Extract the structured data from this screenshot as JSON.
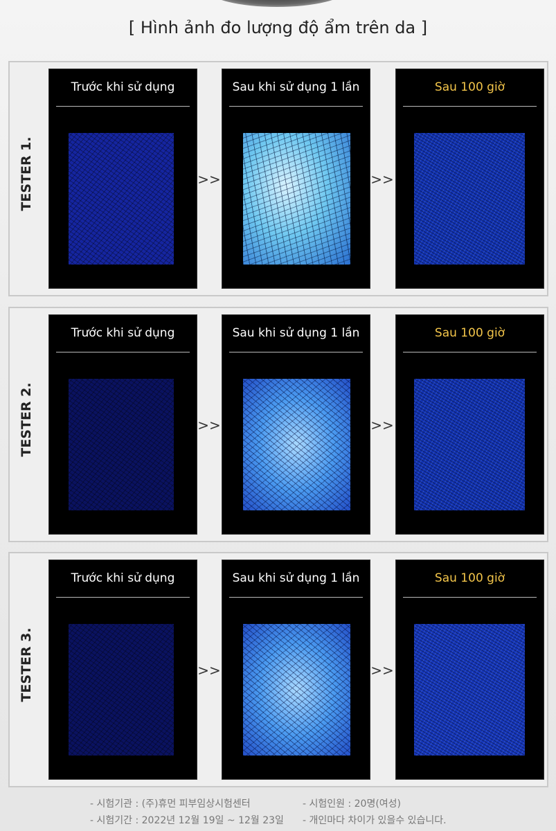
{
  "header": {
    "title": "[ Hình ảnh đo lượng độ ẩm trên da ]"
  },
  "testers": [
    {
      "label": "TESTER 1.",
      "panels": [
        {
          "label": "Trước khi sử dụng"
        },
        {
          "label": "Sau khi sử dụng 1 lần"
        },
        {
          "label": "Sau 100 giờ"
        }
      ],
      "arrows": [
        ">>",
        ">>"
      ]
    },
    {
      "label": "TESTER 2.",
      "panels": [
        {
          "label": "Trước khi sử dụng"
        },
        {
          "label": "Sau khi sử dụng 1 lần"
        },
        {
          "label": "Sau 100 giờ"
        }
      ],
      "arrows": [
        ">>",
        ">>"
      ]
    },
    {
      "label": "TESTER 3.",
      "panels": [
        {
          "label": "Trước khi sử dụng"
        },
        {
          "label": "Sau khi sử dụng 1 lần"
        },
        {
          "label": "Sau 100 giờ"
        }
      ],
      "arrows": [
        ">>",
        ">>"
      ]
    }
  ],
  "footer": {
    "notes": [
      "- 시험기관 : (주)휴먼 피부임상시험센터",
      "- 시험인원 : 20명(여성)",
      "- 시험기간 : 2022년 12월 19일 ~ 12월 23일",
      "- 개인마다 차이가 있을수 있습니다."
    ]
  }
}
